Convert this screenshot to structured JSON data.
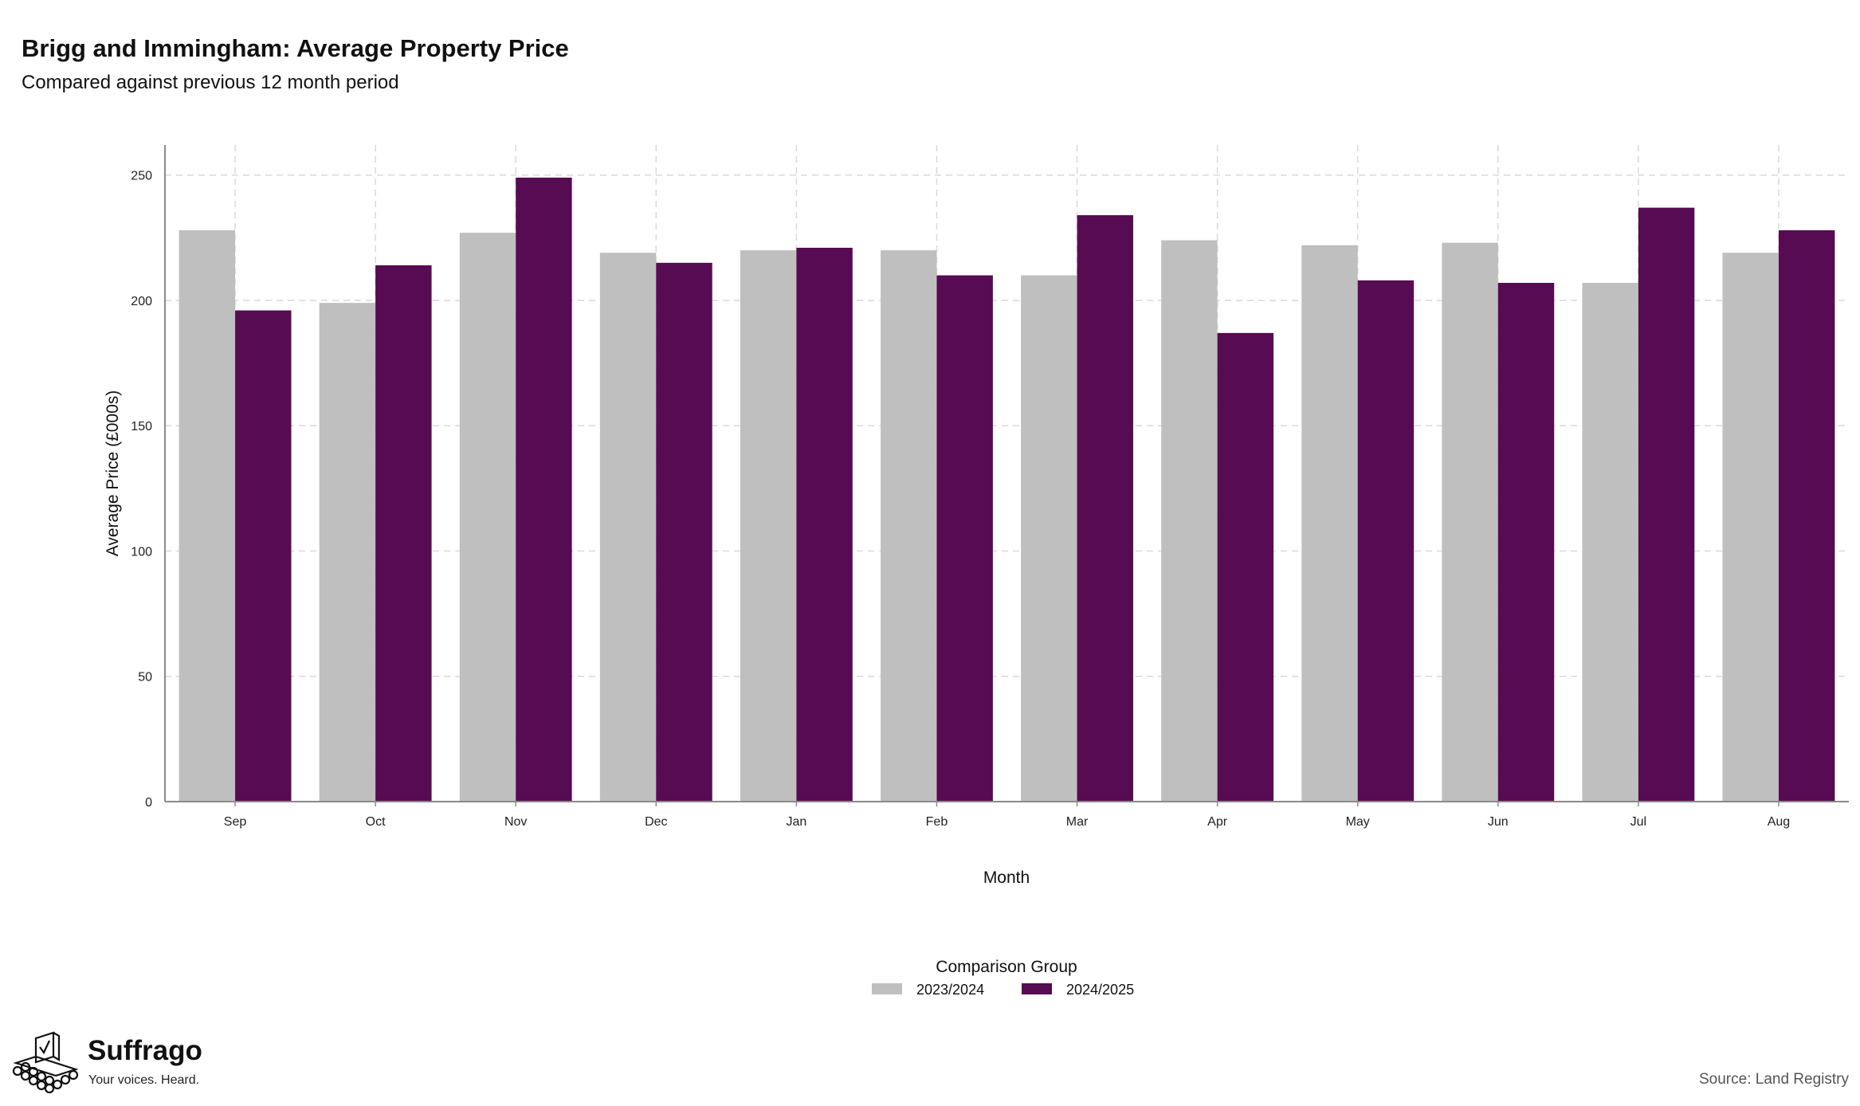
{
  "title": "Brigg and Immingham: Average Property Price",
  "subtitle": "Compared against previous 12 month period",
  "source": "Source: Land Registry",
  "brand": {
    "name": "Suffrago",
    "tagline": "Your voices. Heard.",
    "icon": "ballot-box-crowd-icon"
  },
  "legend": {
    "title": "Comparison Group",
    "items": [
      {
        "label": "2023/2024",
        "color": "#bfbfbf"
      },
      {
        "label": "2024/2025",
        "color": "#570b52"
      }
    ]
  },
  "chart_data": {
    "type": "bar",
    "title": "Brigg and Immingham: Average Property Price",
    "subtitle": "Compared against previous 12 month period",
    "xlabel": "Month",
    "ylabel": "Average Price (£000s)",
    "ylim": [
      0,
      262
    ],
    "yticks": [
      0,
      50,
      100,
      150,
      200,
      250
    ],
    "grid": true,
    "legend_position": "bottom",
    "categories": [
      "Sep",
      "Oct",
      "Nov",
      "Dec",
      "Jan",
      "Feb",
      "Mar",
      "Apr",
      "May",
      "Jun",
      "Jul",
      "Aug"
    ],
    "series": [
      {
        "name": "2023/2024",
        "color": "#bfbfbf",
        "values": [
          228,
          199,
          227,
          219,
          220,
          220,
          210,
          224,
          222,
          223,
          207,
          219
        ]
      },
      {
        "name": "2024/2025",
        "color": "#570b52",
        "values": [
          196,
          214,
          249,
          215,
          221,
          210,
          234,
          187,
          208,
          207,
          237,
          228
        ]
      }
    ]
  }
}
